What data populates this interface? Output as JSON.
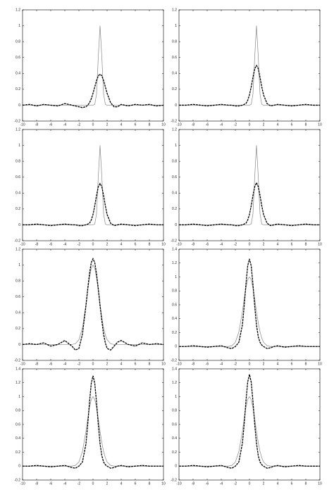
{
  "chart_data": [
    {
      "type": "line",
      "xlim": [
        -10,
        10
      ],
      "ylim": [
        -0.2,
        1.2
      ],
      "xticks": [
        -10,
        -8,
        -6,
        -4,
        -2,
        0,
        2,
        4,
        6,
        8,
        10
      ],
      "yticks": [
        -0.2,
        0,
        0.2,
        0.4,
        0.6,
        0.8,
        1,
        1.2
      ],
      "x": [
        -10,
        -9,
        -8,
        -7,
        -6,
        -5,
        -4,
        -3,
        -2.5,
        -2,
        -1.5,
        -1,
        -0.75,
        -0.5,
        -0.25,
        0,
        0.25,
        0.5,
        0.75,
        1,
        1.25,
        1.5,
        1.75,
        2,
        2.5,
        3,
        3.5,
        4,
        5,
        6,
        7,
        8,
        9,
        10
      ],
      "series": [
        {
          "color": "#888888",
          "style": "solid",
          "values": [
            0,
            0,
            0,
            0,
            0,
            0,
            0,
            0,
            0,
            0,
            0,
            0,
            0,
            0,
            0,
            0,
            0.01,
            0.14,
            0.61,
            1,
            0.61,
            0.14,
            0.01,
            0,
            0,
            0,
            0,
            0,
            0,
            0,
            0,
            0,
            0,
            0
          ]
        },
        {
          "color": "#000000",
          "style": "dashed",
          "values": [
            0,
            0.01,
            -0.01,
            0.01,
            0,
            -0.01,
            0.02,
            0,
            -0.01,
            -0.02,
            -0.03,
            -0.02,
            0,
            0.03,
            0.08,
            0.15,
            0.23,
            0.31,
            0.37,
            0.39,
            0.37,
            0.31,
            0.23,
            0.15,
            0.03,
            -0.02,
            -0.02,
            0.01,
            -0.01,
            0.01,
            0,
            0.01,
            -0.01,
            0
          ]
        }
      ]
    },
    {
      "type": "line",
      "xlim": [
        -10,
        10
      ],
      "ylim": [
        -0.2,
        1.2
      ],
      "xticks": [
        -10,
        -8,
        -6,
        -4,
        -2,
        0,
        2,
        4,
        6,
        8,
        10
      ],
      "yticks": [
        -0.2,
        0,
        0.2,
        0.4,
        0.6,
        0.8,
        1,
        1.2
      ],
      "x": [
        -10,
        -9,
        -8,
        -7,
        -6,
        -5,
        -4,
        -3,
        -2.5,
        -2,
        -1.5,
        -1,
        -0.75,
        -0.5,
        -0.25,
        0,
        0.25,
        0.5,
        0.75,
        1,
        1.25,
        1.5,
        1.75,
        2,
        2.5,
        3,
        3.5,
        4,
        5,
        6,
        7,
        8,
        9,
        10
      ],
      "series": [
        {
          "color": "#888888",
          "style": "solid",
          "values": [
            0,
            0,
            0,
            0,
            0,
            0,
            0,
            0,
            0,
            0,
            0,
            0,
            0,
            0,
            0,
            0,
            0.01,
            0.14,
            0.61,
            1,
            0.61,
            0.14,
            0.01,
            0,
            0,
            0,
            0,
            0,
            0,
            0,
            0,
            0,
            0,
            0
          ]
        },
        {
          "color": "#000000",
          "style": "dashed",
          "values": [
            0,
            0,
            0.01,
            0,
            -0.01,
            0,
            0.01,
            0,
            0,
            -0.01,
            -0.01,
            0,
            0.01,
            0.02,
            0.06,
            0.13,
            0.23,
            0.35,
            0.46,
            0.5,
            0.46,
            0.35,
            0.23,
            0.13,
            0.02,
            -0.01,
            0,
            0.01,
            0,
            -0.01,
            0,
            0.01,
            0,
            0
          ]
        }
      ]
    },
    {
      "type": "line",
      "xlim": [
        -10,
        10
      ],
      "ylim": [
        -0.2,
        1.2
      ],
      "xticks": [
        -10,
        -8,
        -6,
        -4,
        -2,
        0,
        2,
        4,
        6,
        8,
        10
      ],
      "yticks": [
        -0.2,
        0,
        0.2,
        0.4,
        0.6,
        0.8,
        1,
        1.2
      ],
      "x": [
        -10,
        -9,
        -8,
        -7,
        -6,
        -5,
        -4,
        -3,
        -2.5,
        -2,
        -1.5,
        -1,
        -0.75,
        -0.5,
        -0.25,
        0,
        0.25,
        0.5,
        0.75,
        1,
        1.25,
        1.5,
        1.75,
        2,
        2.5,
        3,
        3.5,
        4,
        5,
        6,
        7,
        8,
        9,
        10
      ],
      "series": [
        {
          "color": "#888888",
          "style": "solid",
          "values": [
            0,
            0,
            0,
            0,
            0,
            0,
            0,
            0,
            0,
            0,
            0,
            0,
            0,
            0,
            0,
            0,
            0.01,
            0.14,
            0.61,
            1,
            0.61,
            0.14,
            0.01,
            0,
            0,
            0,
            0,
            0,
            0,
            0,
            0,
            0,
            0,
            0
          ]
        },
        {
          "color": "#000000",
          "style": "dashed",
          "values": [
            0,
            0,
            0.01,
            0,
            -0.01,
            0,
            0.01,
            0,
            0,
            -0.01,
            -0.01,
            0,
            0.01,
            0.02,
            0.06,
            0.13,
            0.24,
            0.37,
            0.48,
            0.52,
            0.48,
            0.37,
            0.24,
            0.13,
            0.02,
            -0.01,
            0,
            0.01,
            0,
            -0.01,
            0,
            0.01,
            0,
            0
          ]
        }
      ]
    },
    {
      "type": "line",
      "xlim": [
        -10,
        10
      ],
      "ylim": [
        -0.2,
        1.2
      ],
      "xticks": [
        -10,
        -8,
        -6,
        -4,
        -2,
        0,
        2,
        4,
        6,
        8,
        10
      ],
      "yticks": [
        -0.2,
        0,
        0.2,
        0.4,
        0.6,
        0.8,
        1,
        1.2
      ],
      "x": [
        -10,
        -9,
        -8,
        -7,
        -6,
        -5,
        -4,
        -3,
        -2.5,
        -2,
        -1.5,
        -1,
        -0.75,
        -0.5,
        -0.25,
        0,
        0.25,
        0.5,
        0.75,
        1,
        1.25,
        1.5,
        1.75,
        2,
        2.5,
        3,
        3.5,
        4,
        5,
        6,
        7,
        8,
        9,
        10
      ],
      "series": [
        {
          "color": "#888888",
          "style": "solid",
          "values": [
            0,
            0,
            0,
            0,
            0,
            0,
            0,
            0,
            0,
            0,
            0,
            0,
            0,
            0,
            0,
            0,
            0.01,
            0.14,
            0.61,
            1,
            0.61,
            0.14,
            0.01,
            0,
            0,
            0,
            0,
            0,
            0,
            0,
            0,
            0,
            0,
            0
          ]
        },
        {
          "color": "#000000",
          "style": "dashed",
          "values": [
            0,
            0,
            0.01,
            0,
            -0.01,
            0,
            0.01,
            0,
            0,
            -0.01,
            -0.01,
            0,
            0.01,
            0.02,
            0.06,
            0.13,
            0.24,
            0.37,
            0.48,
            0.53,
            0.48,
            0.37,
            0.24,
            0.13,
            0.02,
            -0.01,
            0,
            0.01,
            0,
            -0.01,
            0,
            0.01,
            0,
            0
          ]
        }
      ]
    },
    {
      "type": "line",
      "xlim": [
        -10,
        10
      ],
      "ylim": [
        -0.2,
        1.2
      ],
      "xticks": [
        -10,
        -8,
        -6,
        -4,
        -2,
        0,
        2,
        4,
        6,
        8,
        10
      ],
      "yticks": [
        -0.2,
        0,
        0.2,
        0.4,
        0.6,
        0.8,
        1,
        1.2
      ],
      "x": [
        -10,
        -9,
        -8,
        -7,
        -6,
        -5,
        -4,
        -3,
        -2.5,
        -2,
        -1.5,
        -1,
        -0.75,
        -0.5,
        -0.25,
        0,
        0.25,
        0.5,
        0.75,
        1,
        1.25,
        1.5,
        1.75,
        2,
        2.5,
        3,
        3.5,
        4,
        5,
        6,
        7,
        8,
        9,
        10
      ],
      "series": [
        {
          "color": "#888888",
          "style": "solid",
          "values": [
            0,
            0,
            0,
            0,
            0,
            0,
            0,
            0,
            0.01,
            0.06,
            0.21,
            0.5,
            0.68,
            0.84,
            0.96,
            1,
            0.96,
            0.84,
            0.68,
            0.5,
            0.34,
            0.21,
            0.12,
            0.06,
            0.01,
            0,
            0,
            0,
            0,
            0,
            0,
            0,
            0,
            0
          ]
        },
        {
          "color": "#000000",
          "style": "dashed",
          "values": [
            0,
            0.01,
            0,
            0.02,
            -0.02,
            0,
            0.05,
            -0.02,
            -0.07,
            -0.05,
            0.13,
            0.49,
            0.7,
            0.89,
            1.03,
            1.08,
            1.03,
            0.89,
            0.7,
            0.49,
            0.3,
            0.13,
            0.02,
            -0.05,
            -0.07,
            -0.02,
            0.03,
            0.05,
            0,
            -0.02,
            0.02,
            0,
            0.01,
            0
          ]
        }
      ]
    },
    {
      "type": "line",
      "xlim": [
        -10,
        10
      ],
      "ylim": [
        -0.2,
        1.4
      ],
      "xticks": [
        -10,
        -8,
        -6,
        -4,
        -2,
        0,
        2,
        4,
        6,
        8,
        10
      ],
      "yticks": [
        -0.2,
        0,
        0.2,
        0.4,
        0.6,
        0.8,
        1,
        1.2,
        1.4
      ],
      "x": [
        -10,
        -9,
        -8,
        -7,
        -6,
        -5,
        -4,
        -3,
        -2.5,
        -2,
        -1.5,
        -1,
        -0.75,
        -0.5,
        -0.25,
        0,
        0.25,
        0.5,
        0.75,
        1,
        1.25,
        1.5,
        1.75,
        2,
        2.5,
        3,
        3.5,
        4,
        5,
        6,
        7,
        8,
        9,
        10
      ],
      "series": [
        {
          "color": "#888888",
          "style": "solid",
          "values": [
            0,
            0,
            0,
            0,
            0,
            0,
            0,
            0,
            0.01,
            0.06,
            0.21,
            0.5,
            0.68,
            0.84,
            0.96,
            1,
            0.96,
            0.84,
            0.68,
            0.5,
            0.34,
            0.21,
            0.12,
            0.06,
            0.01,
            0,
            0,
            0,
            0,
            0,
            0,
            0,
            0,
            0
          ]
        },
        {
          "color": "#000000",
          "style": "dashed",
          "values": [
            0,
            0,
            0.01,
            0,
            -0.01,
            0,
            0.01,
            -0.02,
            -0.03,
            0,
            0.06,
            0.31,
            0.58,
            0.89,
            1.16,
            1.26,
            1.16,
            0.89,
            0.58,
            0.31,
            0.14,
            0.06,
            0.02,
            0,
            -0.03,
            -0.02,
            0,
            0.01,
            -0.01,
            0,
            0.01,
            0,
            0,
            0
          ]
        }
      ]
    },
    {
      "type": "line",
      "xlim": [
        -10,
        10
      ],
      "ylim": [
        -0.2,
        1.4
      ],
      "xticks": [
        -10,
        -8,
        -6,
        -4,
        -2,
        0,
        2,
        4,
        6,
        8,
        10
      ],
      "yticks": [
        -0.2,
        0,
        0.2,
        0.4,
        0.6,
        0.8,
        1,
        1.2,
        1.4
      ],
      "x": [
        -10,
        -9,
        -8,
        -7,
        -6,
        -5,
        -4,
        -3,
        -2.5,
        -2,
        -1.5,
        -1,
        -0.75,
        -0.5,
        -0.25,
        0,
        0.25,
        0.5,
        0.75,
        1,
        1.25,
        1.5,
        1.75,
        2,
        2.5,
        3,
        3.5,
        4,
        5,
        6,
        7,
        8,
        9,
        10
      ],
      "series": [
        {
          "color": "#888888",
          "style": "solid",
          "values": [
            0,
            0,
            0,
            0,
            0,
            0,
            0,
            0,
            0.01,
            0.06,
            0.21,
            0.5,
            0.68,
            0.84,
            0.96,
            1,
            0.96,
            0.84,
            0.68,
            0.5,
            0.34,
            0.21,
            0.12,
            0.06,
            0.01,
            0,
            0,
            0,
            0,
            0,
            0,
            0,
            0,
            0
          ]
        },
        {
          "color": "#000000",
          "style": "dashed",
          "values": [
            0,
            0,
            0.01,
            0,
            -0.01,
            0,
            0.01,
            -0.02,
            -0.03,
            0,
            0.06,
            0.32,
            0.6,
            0.92,
            1.19,
            1.3,
            1.19,
            0.92,
            0.6,
            0.32,
            0.15,
            0.06,
            0.02,
            0,
            -0.03,
            -0.02,
            0,
            0.01,
            -0.01,
            0,
            0.01,
            0,
            0,
            0
          ]
        }
      ]
    },
    {
      "type": "line",
      "xlim": [
        -10,
        10
      ],
      "ylim": [
        -0.2,
        1.4
      ],
      "xticks": [
        -10,
        -8,
        -6,
        -4,
        -2,
        0,
        2,
        4,
        6,
        8,
        10
      ],
      "yticks": [
        -0.2,
        0,
        0.2,
        0.4,
        0.6,
        0.8,
        1,
        1.2,
        1.4
      ],
      "x": [
        -10,
        -9,
        -8,
        -7,
        -6,
        -5,
        -4,
        -3,
        -2.5,
        -2,
        -1.5,
        -1,
        -0.75,
        -0.5,
        -0.25,
        0,
        0.25,
        0.5,
        0.75,
        1,
        1.25,
        1.5,
        1.75,
        2,
        2.5,
        3,
        3.5,
        4,
        5,
        6,
        7,
        8,
        9,
        10
      ],
      "series": [
        {
          "color": "#888888",
          "style": "solid",
          "values": [
            0,
            0,
            0,
            0,
            0,
            0,
            0,
            0,
            0.01,
            0.06,
            0.21,
            0.5,
            0.68,
            0.84,
            0.96,
            1,
            0.96,
            0.84,
            0.68,
            0.5,
            0.34,
            0.21,
            0.12,
            0.06,
            0.01,
            0,
            0,
            0,
            0,
            0,
            0,
            0,
            0,
            0
          ]
        },
        {
          "color": "#000000",
          "style": "dashed",
          "values": [
            0,
            0,
            0.01,
            0,
            -0.01,
            0,
            0.01,
            -0.02,
            -0.03,
            0,
            0.06,
            0.33,
            0.6,
            0.93,
            1.21,
            1.32,
            1.21,
            0.93,
            0.6,
            0.33,
            0.15,
            0.06,
            0.02,
            0,
            -0.03,
            -0.02,
            0,
            0.01,
            -0.01,
            0,
            0.01,
            0,
            0,
            0
          ]
        }
      ]
    }
  ]
}
